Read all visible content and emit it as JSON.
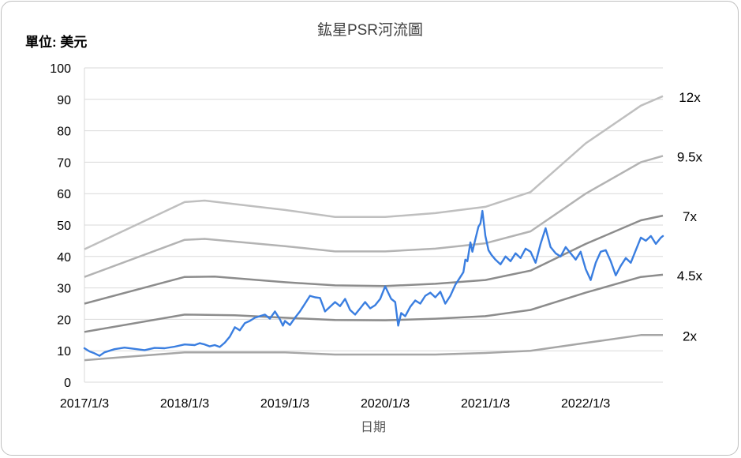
{
  "chart_data": {
    "type": "line",
    "title": "鈜星PSR河流圖",
    "unit_label": "單位: 美元",
    "xlabel": "日期",
    "ylabel": "",
    "ylim": [
      0,
      100
    ],
    "yticks": [
      0,
      10,
      20,
      30,
      40,
      50,
      60,
      70,
      80,
      90,
      100
    ],
    "xlim": [
      2017.0,
      2022.77
    ],
    "xticks": [
      {
        "label": "2017/1/3",
        "value": 2017.0
      },
      {
        "label": "2018/1/3",
        "value": 2018.0
      },
      {
        "label": "2019/1/3",
        "value": 2019.0
      },
      {
        "label": "2020/1/3",
        "value": 2020.0
      },
      {
        "label": "2021/1/3",
        "value": 2021.0
      },
      {
        "label": "2022/1/3",
        "value": 2022.0
      }
    ],
    "grid": "horizontal",
    "bands": [
      {
        "name": "2x",
        "color": "#a6a6a6",
        "points": [
          [
            2017.0,
            7
          ],
          [
            2018.0,
            9.5
          ],
          [
            2019.0,
            9.5
          ],
          [
            2019.5,
            8.8
          ],
          [
            2020.0,
            8.8
          ],
          [
            2020.5,
            8.8
          ],
          [
            2021.0,
            9.3
          ],
          [
            2021.45,
            10
          ],
          [
            2022.0,
            12.5
          ],
          [
            2022.55,
            15
          ],
          [
            2022.77,
            15
          ]
        ]
      },
      {
        "name": "4.5x",
        "color": "#8c8c8c",
        "points": [
          [
            2017.0,
            16
          ],
          [
            2018.0,
            21.5
          ],
          [
            2018.5,
            21.3
          ],
          [
            2019.0,
            20.5
          ],
          [
            2019.5,
            19.8
          ],
          [
            2020.0,
            19.7
          ],
          [
            2020.5,
            20.2
          ],
          [
            2021.0,
            21
          ],
          [
            2021.45,
            23
          ],
          [
            2022.0,
            28.5
          ],
          [
            2022.55,
            33.5
          ],
          [
            2022.77,
            34.2
          ]
        ]
      },
      {
        "name": "7x",
        "color": "#8c8c8c",
        "points": [
          [
            2017.0,
            25
          ],
          [
            2018.0,
            33.5
          ],
          [
            2018.3,
            33.6
          ],
          [
            2019.0,
            31.8
          ],
          [
            2019.5,
            30.8
          ],
          [
            2020.0,
            30.6
          ],
          [
            2020.5,
            31.3
          ],
          [
            2021.0,
            32.5
          ],
          [
            2021.45,
            35.5
          ],
          [
            2022.0,
            44
          ],
          [
            2022.55,
            51.5
          ],
          [
            2022.77,
            53
          ]
        ]
      },
      {
        "name": "9.5x",
        "color": "#b3b3b3",
        "points": [
          [
            2017.0,
            33.5
          ],
          [
            2018.0,
            45.3
          ],
          [
            2018.2,
            45.6
          ],
          [
            2019.0,
            43.3
          ],
          [
            2019.5,
            41.6
          ],
          [
            2020.0,
            41.6
          ],
          [
            2020.5,
            42.5
          ],
          [
            2021.0,
            44.2
          ],
          [
            2021.45,
            48
          ],
          [
            2022.0,
            60
          ],
          [
            2022.55,
            70
          ],
          [
            2022.77,
            72
          ]
        ]
      },
      {
        "name": "12x",
        "color": "#bfbfbf",
        "points": [
          [
            2017.0,
            42.3
          ],
          [
            2018.0,
            57.3
          ],
          [
            2018.2,
            57.8
          ],
          [
            2019.0,
            54.8
          ],
          [
            2019.5,
            52.6
          ],
          [
            2020.0,
            52.6
          ],
          [
            2020.5,
            53.8
          ],
          [
            2021.0,
            55.8
          ],
          [
            2021.45,
            60.5
          ],
          [
            2022.0,
            76
          ],
          [
            2022.55,
            88
          ],
          [
            2022.77,
            91
          ]
        ]
      }
    ],
    "series": [
      {
        "name": "",
        "color": "#3a7ee0",
        "points": [
          [
            2017.0,
            10.8
          ],
          [
            2017.05,
            9.8
          ],
          [
            2017.1,
            9.2
          ],
          [
            2017.15,
            8.4
          ],
          [
            2017.2,
            9.5
          ],
          [
            2017.3,
            10.5
          ],
          [
            2017.4,
            11.0
          ],
          [
            2017.5,
            10.6
          ],
          [
            2017.6,
            10.2
          ],
          [
            2017.7,
            10.9
          ],
          [
            2017.8,
            10.8
          ],
          [
            2017.9,
            11.3
          ],
          [
            2018.0,
            12.0
          ],
          [
            2018.1,
            11.8
          ],
          [
            2018.15,
            12.4
          ],
          [
            2018.2,
            12.0
          ],
          [
            2018.25,
            11.4
          ],
          [
            2018.3,
            11.8
          ],
          [
            2018.35,
            11.2
          ],
          [
            2018.4,
            12.6
          ],
          [
            2018.45,
            14.5
          ],
          [
            2018.5,
            17.5
          ],
          [
            2018.55,
            16.5
          ],
          [
            2018.6,
            18.8
          ],
          [
            2018.65,
            19.5
          ],
          [
            2018.7,
            20.5
          ],
          [
            2018.75,
            21.0
          ],
          [
            2018.8,
            21.5
          ],
          [
            2018.85,
            20.2
          ],
          [
            2018.9,
            22.5
          ],
          [
            2018.95,
            20.0
          ],
          [
            2018.98,
            18.0
          ],
          [
            2019.0,
            19.5
          ],
          [
            2019.05,
            18.2
          ],
          [
            2019.1,
            20.5
          ],
          [
            2019.15,
            22.5
          ],
          [
            2019.2,
            25.0
          ],
          [
            2019.25,
            27.5
          ],
          [
            2019.3,
            27.0
          ],
          [
            2019.35,
            26.8
          ],
          [
            2019.4,
            22.5
          ],
          [
            2019.45,
            24.0
          ],
          [
            2019.5,
            25.5
          ],
          [
            2019.55,
            24.2
          ],
          [
            2019.6,
            26.5
          ],
          [
            2019.65,
            23.0
          ],
          [
            2019.7,
            21.5
          ],
          [
            2019.75,
            23.5
          ],
          [
            2019.8,
            25.5
          ],
          [
            2019.85,
            23.5
          ],
          [
            2019.9,
            24.5
          ],
          [
            2019.95,
            26.5
          ],
          [
            2020.0,
            30.5
          ],
          [
            2020.03,
            28.5
          ],
          [
            2020.06,
            26.5
          ],
          [
            2020.1,
            25.5
          ],
          [
            2020.13,
            18.0
          ],
          [
            2020.16,
            22.0
          ],
          [
            2020.2,
            21.0
          ],
          [
            2020.25,
            24.0
          ],
          [
            2020.3,
            26.0
          ],
          [
            2020.35,
            25.0
          ],
          [
            2020.4,
            27.5
          ],
          [
            2020.45,
            28.5
          ],
          [
            2020.5,
            27.0
          ],
          [
            2020.55,
            28.8
          ],
          [
            2020.6,
            25.0
          ],
          [
            2020.65,
            27.5
          ],
          [
            2020.7,
            31.0
          ],
          [
            2020.75,
            33.5
          ],
          [
            2020.78,
            35.0
          ],
          [
            2020.8,
            39.0
          ],
          [
            2020.82,
            38.5
          ],
          [
            2020.85,
            44.5
          ],
          [
            2020.87,
            41.5
          ],
          [
            2020.9,
            45.5
          ],
          [
            2020.93,
            49.5
          ],
          [
            2020.95,
            50.5
          ],
          [
            2020.97,
            54.5
          ],
          [
            2021.0,
            46.5
          ],
          [
            2021.03,
            42.0
          ],
          [
            2021.06,
            40.5
          ],
          [
            2021.1,
            39.0
          ],
          [
            2021.15,
            37.5
          ],
          [
            2021.2,
            40.0
          ],
          [
            2021.25,
            38.5
          ],
          [
            2021.3,
            41.0
          ],
          [
            2021.35,
            39.5
          ],
          [
            2021.4,
            42.5
          ],
          [
            2021.45,
            41.5
          ],
          [
            2021.5,
            38.0
          ],
          [
            2021.55,
            44.0
          ],
          [
            2021.6,
            49.0
          ],
          [
            2021.65,
            43.0
          ],
          [
            2021.7,
            41.0
          ],
          [
            2021.75,
            40.0
          ],
          [
            2021.8,
            43.0
          ],
          [
            2021.85,
            41.0
          ],
          [
            2021.9,
            39.0
          ],
          [
            2021.95,
            41.5
          ],
          [
            2022.0,
            36.0
          ],
          [
            2022.05,
            32.5
          ],
          [
            2022.1,
            38.0
          ],
          [
            2022.15,
            41.5
          ],
          [
            2022.2,
            42.0
          ],
          [
            2022.25,
            38.5
          ],
          [
            2022.3,
            34.0
          ],
          [
            2022.35,
            37.0
          ],
          [
            2022.4,
            39.5
          ],
          [
            2022.45,
            38.0
          ],
          [
            2022.5,
            42.0
          ],
          [
            2022.55,
            46.0
          ],
          [
            2022.6,
            45.0
          ],
          [
            2022.65,
            46.5
          ],
          [
            2022.7,
            44.0
          ],
          [
            2022.75,
            46.0
          ],
          [
            2022.77,
            46.5
          ]
        ]
      }
    ]
  }
}
